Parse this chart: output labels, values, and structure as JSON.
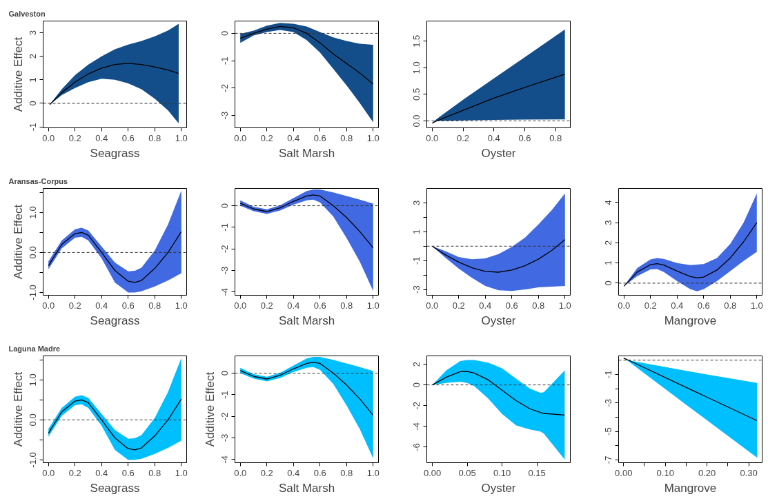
{
  "chart_data": [
    {
      "type": "line",
      "title": "Galveston",
      "xlabel": "Seagrass",
      "ylabel": "Additive Effect",
      "xlim": [
        -0.04,
        1.04
      ],
      "ylim": [
        -1.04,
        3.5
      ],
      "xticks": [
        {
          "value": 0,
          "label": "0.0"
        },
        0.2,
        0.4,
        0.6,
        0.8,
        {
          "value": 1,
          "label": "1.0"
        }
      ],
      "yticks": [
        -1,
        0,
        1,
        2,
        3
      ],
      "grid": false,
      "ref_lines": [
        {
          "axis": "y",
          "value": 0,
          "line_style": "dashed"
        }
      ],
      "series": [
        {
          "color": "#000000",
          "colors": [
            "#134e8a",
            "#134e8a",
            "#134e8a",
            "#134e8a",
            "#134e8a",
            "#134e8a",
            "#134e8a",
            "#134e8a",
            "#134e8a",
            "#134e8a",
            "#134e8a"
          ],
          "x": [
            0.01,
            0.1,
            0.2,
            0.3,
            0.4,
            0.5,
            0.6,
            0.7,
            0.8,
            0.9,
            0.98
          ],
          "values": [
            -0.05,
            0.45,
            0.9,
            1.25,
            1.5,
            1.65,
            1.7,
            1.65,
            1.55,
            1.42,
            1.27
          ],
          "lower": [
            -0.05,
            0.35,
            0.65,
            0.9,
            1.05,
            1.0,
            0.85,
            0.6,
            0.2,
            -0.3,
            -0.85
          ],
          "upper": [
            -0.05,
            0.6,
            1.2,
            1.65,
            2.0,
            2.3,
            2.5,
            2.65,
            2.85,
            3.1,
            3.38
          ]
        }
      ]
    },
    {
      "type": "line",
      "xlabel": "Salt Marsh",
      "xlim": [
        -0.04,
        1.04
      ],
      "ylim": [
        -3.45,
        0.45
      ],
      "xticks": [
        {
          "value": 0,
          "label": "0.0"
        },
        0.2,
        0.4,
        0.6,
        0.8,
        {
          "value": 1,
          "label": "1.0"
        }
      ],
      "yticks": [
        -3,
        -2,
        -1,
        0
      ],
      "grid": false,
      "ref_lines": [
        {
          "axis": "y",
          "value": 0,
          "line_style": "dashed"
        }
      ],
      "series": [
        {
          "color": "#000000",
          "colors": [
            "#134e8a",
            "#134e8a",
            "#134e8a",
            "#134e8a",
            "#134e8a",
            "#134e8a",
            "#134e8a",
            "#134e8a",
            "#134e8a",
            "#134e8a",
            "#134e8a"
          ],
          "x": [
            0,
            0.1,
            0.2,
            0.3,
            0.4,
            0.5,
            0.6,
            0.7,
            0.8,
            0.9,
            1.0
          ],
          "values": [
            -0.18,
            0.0,
            0.15,
            0.25,
            0.2,
            0.0,
            -0.35,
            -0.75,
            -1.1,
            -1.45,
            -1.85
          ],
          "lower": [
            -0.35,
            -0.08,
            0.05,
            0.12,
            0.05,
            -0.25,
            -0.7,
            -1.3,
            -1.9,
            -2.55,
            -3.25
          ],
          "upper": [
            -0.02,
            0.1,
            0.28,
            0.38,
            0.35,
            0.25,
            0.05,
            -0.15,
            -0.28,
            -0.38,
            -0.42
          ]
        }
      ]
    },
    {
      "type": "line",
      "xlabel": "Oyster",
      "xlim": [
        -0.035,
        0.895
      ],
      "ylim": [
        -0.13,
        1.88
      ],
      "xticks": [
        {
          "value": 0,
          "label": "0.0"
        },
        0.2,
        0.4,
        0.6,
        0.8
      ],
      "yticks": [
        {
          "value": 0,
          "label": "0.0"
        },
        0.5,
        {
          "value": 1,
          "label": "1.0"
        },
        1.5
      ],
      "grid": false,
      "ref_lines": [
        {
          "axis": "y",
          "value": 0,
          "line_style": "dashed"
        }
      ],
      "series": [
        {
          "color": "#000000",
          "colors": [
            "#134e8a",
            "#134e8a",
            "#134e8a",
            "#134e8a",
            "#134e8a",
            "#134e8a"
          ],
          "x": [
            0,
            0.03,
            0.2,
            0.4,
            0.6,
            0.86
          ],
          "values": [
            -0.04,
            0.0,
            0.2,
            0.43,
            0.63,
            0.88
          ],
          "lower": [
            -0.04,
            0.0,
            0.01,
            0.02,
            0.025,
            0.03
          ],
          "upper": [
            -0.04,
            0.04,
            0.4,
            0.8,
            1.2,
            1.72
          ]
        }
      ]
    },
    {
      "type": "line",
      "title": "Aransas-Corpus",
      "xlabel": "Seagrass",
      "ylabel": "Additive Effect",
      "xlim": [
        -0.04,
        1.04
      ],
      "ylim": [
        -1.07,
        1.6
      ],
      "xticks": [
        {
          "value": 0,
          "label": "0.0"
        },
        0.2,
        0.4,
        0.6,
        0.8,
        {
          "value": 1,
          "label": "1.0"
        }
      ],
      "yticks": [
        {
          "value": -1,
          "label": "-1.0"
        },
        {
          "value": -0.5,
          "label": null
        },
        {
          "value": 0,
          "label": "0.0"
        },
        {
          "value": 0.5,
          "label": null
        },
        {
          "value": 1,
          "label": "1.0"
        },
        {
          "value": 1.5,
          "label": null
        }
      ],
      "grid": false,
      "ref_lines": [
        {
          "axis": "y",
          "value": 0,
          "line_style": "dashed"
        }
      ],
      "series": [
        {
          "color": "#000000",
          "colors": [
            "#4169e1",
            "#4169e1",
            "#4169e1",
            "#4169e1",
            "#4169e1",
            "#4169e1",
            "#4169e1",
            "#4169e1",
            "#4169e1",
            "#4169e1",
            "#4169e1",
            "#4169e1",
            "#4169e1"
          ],
          "x": [
            0,
            0.1,
            0.2,
            0.25,
            0.3,
            0.4,
            0.5,
            0.6,
            0.65,
            0.7,
            0.8,
            0.9,
            1.0
          ],
          "values": [
            -0.33,
            0.2,
            0.47,
            0.5,
            0.43,
            0.0,
            -0.45,
            -0.72,
            -0.75,
            -0.7,
            -0.4,
            0.0,
            0.52
          ],
          "lower": [
            -0.42,
            0.1,
            0.37,
            0.39,
            0.3,
            -0.15,
            -0.75,
            -1.0,
            -1.0,
            -0.97,
            -0.85,
            -0.7,
            -0.52
          ],
          "upper": [
            -0.22,
            0.3,
            0.58,
            0.62,
            0.55,
            0.15,
            -0.25,
            -0.47,
            -0.46,
            -0.38,
            0.05,
            0.7,
            1.55
          ]
        }
      ]
    },
    {
      "type": "line",
      "xlabel": "Salt Marsh",
      "xlim": [
        -0.04,
        1.04
      ],
      "ylim": [
        -4.15,
        0.8
      ],
      "xticks": [
        {
          "value": 0,
          "label": "0.0"
        },
        0.2,
        0.4,
        0.6,
        0.8,
        {
          "value": 1,
          "label": "1.0"
        }
      ],
      "yticks": [
        -4,
        -3,
        -2,
        -1,
        0
      ],
      "grid": false,
      "ref_lines": [
        {
          "axis": "y",
          "value": 0,
          "line_style": "dashed"
        }
      ],
      "series": [
        {
          "color": "#000000",
          "colors": [
            "#4169e1",
            "#4169e1",
            "#4169e1",
            "#4169e1",
            "#4169e1",
            "#4169e1",
            "#4169e1",
            "#4169e1",
            "#4169e1",
            "#4169e1",
            "#4169e1",
            "#4169e1"
          ],
          "x": [
            0,
            0.1,
            0.2,
            0.3,
            0.4,
            0.5,
            0.55,
            0.6,
            0.7,
            0.8,
            0.9,
            1.0
          ],
          "values": [
            0.12,
            -0.15,
            -0.27,
            -0.1,
            0.2,
            0.45,
            0.5,
            0.45,
            0.0,
            -0.55,
            -1.2,
            -1.95
          ],
          "lower": [
            0.0,
            -0.25,
            -0.38,
            -0.22,
            0.05,
            0.25,
            0.28,
            0.15,
            -0.5,
            -1.5,
            -2.6,
            -3.95
          ],
          "upper": [
            0.25,
            -0.05,
            -0.17,
            0.02,
            0.35,
            0.68,
            0.75,
            0.75,
            0.62,
            0.45,
            0.28,
            0.1
          ]
        }
      ]
    },
    {
      "type": "line",
      "xlabel": "Oyster",
      "xlim": [
        -0.04,
        1.04
      ],
      "ylim": [
        -3.4,
        4.0
      ],
      "xticks": [
        {
          "value": 0,
          "label": "0.0"
        },
        0.2,
        0.4,
        0.6,
        0.8,
        {
          "value": 1,
          "label": "1.0"
        }
      ],
      "yticks": [
        -3,
        {
          "value": -2,
          "label": null
        },
        -1,
        {
          "value": 0,
          "label": null
        },
        1,
        {
          "value": 2,
          "label": null
        },
        3
      ],
      "grid": false,
      "ref_lines": [
        {
          "axis": "y",
          "value": 0,
          "line_style": "dashed"
        }
      ],
      "series": [
        {
          "color": "#000000",
          "colors": [
            "#4169e1",
            "#4169e1",
            "#4169e1",
            "#4169e1",
            "#4169e1",
            "#4169e1",
            "#4169e1",
            "#4169e1",
            "#4169e1",
            "#4169e1",
            "#4169e1"
          ],
          "x": [
            0,
            0.1,
            0.2,
            0.3,
            0.4,
            0.5,
            0.6,
            0.7,
            0.8,
            0.9,
            1.0
          ],
          "values": [
            0.0,
            -0.6,
            -1.1,
            -1.5,
            -1.75,
            -1.8,
            -1.65,
            -1.35,
            -0.9,
            -0.3,
            0.45
          ],
          "lower": [
            0.0,
            -0.8,
            -1.55,
            -2.2,
            -2.75,
            -3.05,
            -3.1,
            -3.0,
            -2.85,
            -2.8,
            -2.75
          ],
          "upper": [
            0.0,
            -0.35,
            -0.75,
            -0.9,
            -0.85,
            -0.55,
            -0.05,
            0.6,
            1.5,
            2.5,
            3.65
          ]
        }
      ]
    },
    {
      "type": "line",
      "xlabel": "Mangrove",
      "xlim": [
        -0.04,
        1.04
      ],
      "ylim": [
        -0.6,
        4.7
      ],
      "xticks": [
        {
          "value": 0,
          "label": "0.0"
        },
        0.2,
        0.4,
        0.6,
        0.8,
        {
          "value": 1,
          "label": "1.0"
        }
      ],
      "yticks": [
        0,
        1,
        2,
        3,
        4
      ],
      "grid": false,
      "ref_lines": [
        {
          "axis": "y",
          "value": 0,
          "line_style": "dashed"
        }
      ],
      "series": [
        {
          "color": "#000000",
          "colors": [
            "#4169e1",
            "#4169e1",
            "#4169e1",
            "#4169e1",
            "#4169e1",
            "#4169e1",
            "#4169e1",
            "#4169e1",
            "#4169e1",
            "#4169e1",
            "#4169e1",
            "#4169e1",
            "#4169e1"
          ],
          "x": [
            0,
            0.1,
            0.2,
            0.25,
            0.3,
            0.4,
            0.5,
            0.55,
            0.6,
            0.7,
            0.8,
            0.9,
            1.0
          ],
          "values": [
            -0.15,
            0.55,
            0.92,
            0.97,
            0.9,
            0.6,
            0.33,
            0.27,
            0.3,
            0.65,
            1.25,
            2.05,
            3.0
          ],
          "lower": [
            -0.15,
            0.35,
            0.68,
            0.7,
            0.55,
            0.1,
            -0.3,
            -0.4,
            -0.3,
            0.1,
            0.6,
            1.1,
            1.55
          ],
          "upper": [
            -0.15,
            0.75,
            1.18,
            1.25,
            1.2,
            1.0,
            0.9,
            0.92,
            0.95,
            1.25,
            1.95,
            3.0,
            4.45
          ]
        }
      ]
    },
    {
      "type": "line",
      "title": "Laguna Madre",
      "xlabel": "Seagrass",
      "ylabel": "Additive Effect",
      "xlim": [
        -0.04,
        1.04
      ],
      "ylim": [
        -1.07,
        1.6
      ],
      "xticks": [
        {
          "value": 0,
          "label": "0.0"
        },
        0.2,
        0.4,
        0.6,
        0.8,
        {
          "value": 1,
          "label": "1.0"
        }
      ],
      "yticks": [
        {
          "value": -1,
          "label": "-1.0"
        },
        {
          "value": -0.5,
          "label": null
        },
        {
          "value": 0,
          "label": "0.0"
        },
        {
          "value": 0.5,
          "label": null
        },
        {
          "value": 1,
          "label": "1.0"
        },
        {
          "value": 1.5,
          "label": null
        }
      ],
      "grid": false,
      "ref_lines": [
        {
          "axis": "y",
          "value": 0,
          "line_style": "dashed"
        }
      ],
      "series": [
        {
          "color": "#000000",
          "colors": [
            "#00bfff",
            "#00bfff",
            "#00bfff",
            "#00bfff",
            "#00bfff",
            "#00bfff",
            "#00bfff",
            "#00bfff",
            "#00bfff",
            "#00bfff",
            "#00bfff",
            "#00bfff",
            "#00bfff"
          ],
          "x": [
            0,
            0.1,
            0.2,
            0.25,
            0.3,
            0.4,
            0.5,
            0.6,
            0.65,
            0.7,
            0.8,
            0.9,
            1.0
          ],
          "values": [
            -0.33,
            0.2,
            0.47,
            0.5,
            0.43,
            0.0,
            -0.45,
            -0.72,
            -0.75,
            -0.7,
            -0.4,
            0.0,
            0.52
          ],
          "lower": [
            -0.42,
            0.1,
            0.37,
            0.39,
            0.3,
            -0.15,
            -0.75,
            -1.0,
            -1.0,
            -0.97,
            -0.85,
            -0.7,
            -0.52
          ],
          "upper": [
            -0.22,
            0.3,
            0.58,
            0.62,
            0.55,
            0.15,
            -0.25,
            -0.47,
            -0.46,
            -0.38,
            0.05,
            0.7,
            1.55
          ]
        }
      ]
    },
    {
      "type": "line",
      "xlabel": "Salt Marsh",
      "ylabel": "Additive Effect",
      "xlim": [
        -0.04,
        1.04
      ],
      "ylim": [
        -4.15,
        0.8
      ],
      "xticks": [
        {
          "value": 0,
          "label": "0.0"
        },
        0.2,
        0.4,
        0.6,
        0.8,
        {
          "value": 1,
          "label": "1.0"
        }
      ],
      "yticks": [
        -4,
        -3,
        -2,
        -1,
        0
      ],
      "grid": false,
      "ref_lines": [
        {
          "axis": "y",
          "value": 0,
          "line_style": "dashed"
        }
      ],
      "series": [
        {
          "color": "#000000",
          "colors": [
            "#00bfff",
            "#00bfff",
            "#00bfff",
            "#00bfff",
            "#00bfff",
            "#00bfff",
            "#00bfff",
            "#00bfff",
            "#00bfff",
            "#00bfff",
            "#00bfff",
            "#00bfff"
          ],
          "x": [
            0,
            0.1,
            0.2,
            0.3,
            0.4,
            0.5,
            0.55,
            0.6,
            0.7,
            0.8,
            0.9,
            1.0
          ],
          "values": [
            0.12,
            -0.15,
            -0.27,
            -0.1,
            0.2,
            0.45,
            0.5,
            0.45,
            0.0,
            -0.55,
            -1.2,
            -1.95
          ],
          "lower": [
            0.0,
            -0.25,
            -0.38,
            -0.22,
            0.05,
            0.25,
            0.28,
            0.15,
            -0.5,
            -1.5,
            -2.6,
            -3.95
          ],
          "upper": [
            0.25,
            -0.05,
            -0.17,
            0.02,
            0.35,
            0.68,
            0.75,
            0.75,
            0.62,
            0.45,
            0.28,
            0.1
          ]
        }
      ]
    },
    {
      "type": "line",
      "xlabel": "Oyster",
      "xlim": [
        -0.008,
        0.198
      ],
      "ylim": [
        -7.5,
        2.8
      ],
      "xticks": [
        {
          "value": 0,
          "label": "0.00"
        },
        0.05,
        {
          "value": 0.1,
          "label": "0.10"
        },
        0.15
      ],
      "yticks": [
        -6,
        -4,
        -2,
        0,
        2
      ],
      "grid": false,
      "ref_lines": [
        {
          "axis": "y",
          "value": 0,
          "line_style": "dashed"
        }
      ],
      "series": [
        {
          "color": "#000000",
          "colors": [
            "#00bfff",
            "#00bfff",
            "#00bfff",
            "#00bfff",
            "#00bfff",
            "#00bfff",
            "#00bfff",
            "#00bfff",
            "#00bfff",
            "#00bfff",
            "#00bfff",
            "#00bfff"
          ],
          "x": [
            0,
            0.02,
            0.04,
            0.05,
            0.06,
            0.08,
            0.1,
            0.12,
            0.14,
            0.155,
            0.16,
            0.19
          ],
          "values": [
            0.0,
            0.75,
            1.28,
            1.3,
            1.15,
            0.5,
            -0.5,
            -1.5,
            -2.3,
            -2.65,
            -2.75,
            -2.9
          ],
          "lower": [
            0.0,
            0.2,
            0.3,
            0.2,
            -0.1,
            -1.3,
            -2.8,
            -3.9,
            -4.3,
            -4.5,
            -4.7,
            -7.2
          ],
          "upper": [
            0.0,
            1.4,
            2.3,
            2.4,
            2.4,
            2.15,
            1.6,
            0.6,
            -0.35,
            -0.75,
            -0.7,
            1.4
          ]
        }
      ]
    },
    {
      "type": "line",
      "xlabel": "Mangrove",
      "xlim": [
        -0.012,
        0.332
      ],
      "ylim": [
        -7.2,
        0.3
      ],
      "xticks": [
        {
          "value": 0,
          "label": "0.00"
        },
        {
          "value": 0.05,
          "label": null
        },
        {
          "value": 0.1,
          "label": "0.10"
        },
        {
          "value": 0.15,
          "label": null
        },
        {
          "value": 0.2,
          "label": "0.20"
        },
        {
          "value": 0.25,
          "label": null
        },
        {
          "value": 0.3,
          "label": "0.30"
        }
      ],
      "yticks": [
        -7,
        {
          "value": -6,
          "label": null
        },
        -5,
        {
          "value": -4,
          "label": null
        },
        -3,
        {
          "value": -2,
          "label": null
        },
        -1
      ],
      "grid": false,
      "ref_lines": [
        {
          "axis": "y",
          "value": 0,
          "line_style": "dashed"
        }
      ],
      "series": [
        {
          "color": "#000000",
          "colors": [
            "#00bfff",
            "#00bfff",
            "#00bfff",
            "#00bfff"
          ],
          "x": [
            0,
            0.01,
            0.16,
            0.32
          ],
          "values": [
            0.15,
            0.02,
            -2.05,
            -4.25
          ],
          "lower": [
            0.15,
            -0.05,
            -3.35,
            -6.85
          ],
          "upper": [
            0.15,
            0.0,
            -0.8,
            -1.6
          ]
        }
      ]
    }
  ]
}
